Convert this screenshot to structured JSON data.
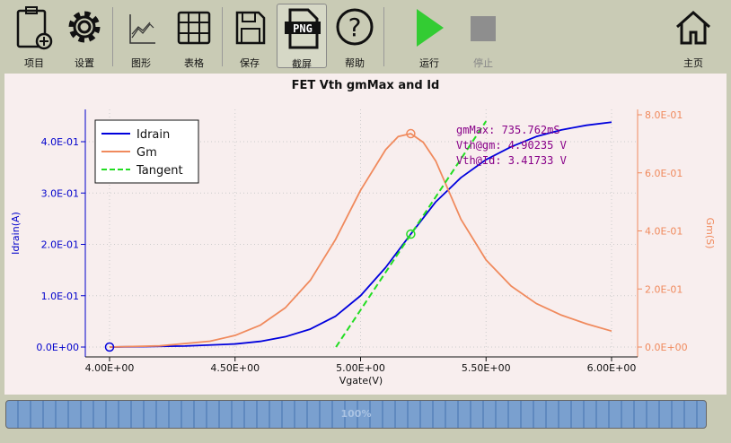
{
  "toolbar": {
    "items": [
      {
        "label": "项目",
        "icon": "clipboard-add-icon"
      },
      {
        "label": "设置",
        "icon": "gear-icon"
      },
      {
        "label": "图形",
        "icon": "line-chart-icon"
      },
      {
        "label": "表格",
        "icon": "table-grid-icon"
      },
      {
        "label": "保存",
        "icon": "floppy-save-icon"
      },
      {
        "label": "截屏",
        "icon": "png-file-icon"
      },
      {
        "label": "帮助",
        "icon": "help-icon"
      },
      {
        "label": "运行",
        "icon": "play-icon"
      },
      {
        "label": "停止",
        "icon": "stop-icon"
      },
      {
        "label": "主页",
        "icon": "home-icon"
      }
    ]
  },
  "chart_data": {
    "type": "line",
    "title": "FET Vth gmMax and Id",
    "xlabel": "Vgate(V)",
    "ylabel": "Idrain(A)",
    "y2label": "Gm(S)",
    "xlim": [
      3.9,
      6.05
    ],
    "ylim": [
      -0.02,
      0.465
    ],
    "y2lim": [
      -0.034,
      0.82
    ],
    "xticks": [
      "4.00E+00",
      "4.50E+00",
      "5.00E+00",
      "5.50E+00",
      "6.00E+00"
    ],
    "xtick_values": [
      4,
      4.5,
      5,
      5.5,
      6
    ],
    "yticks": [
      "0.0E+00",
      "1.0E-01",
      "2.0E-01",
      "3.0E-01",
      "4.0E-01"
    ],
    "ytick_values": [
      0,
      0.1,
      0.2,
      0.3,
      0.4
    ],
    "y2ticks": [
      "0.0E+00",
      "2.0E-01",
      "4.0E-01",
      "6.0E-01",
      "8.0E-01"
    ],
    "y2tick_values": [
      0,
      0.2,
      0.4,
      0.6,
      0.8
    ],
    "legend": {
      "placement": "top-left",
      "entries": [
        "Idrain",
        "Gm",
        "Tangent"
      ]
    },
    "colors": {
      "idrain": "#0000dd",
      "gm": "#f08a5d",
      "tangent": "#22dd22",
      "annot": "#880088",
      "right_axis": "#f08a5d",
      "left_axis": "#0000cc"
    },
    "series": [
      {
        "name": "Idrain",
        "axis": "left",
        "x": [
          4.0,
          4.3,
          4.5,
          4.6,
          4.7,
          4.8,
          4.9,
          5.0,
          5.1,
          5.2,
          5.3,
          5.4,
          5.5,
          5.6,
          5.7,
          5.8,
          5.9,
          6.0
        ],
        "y": [
          0,
          0.002,
          0.006,
          0.011,
          0.02,
          0.035,
          0.06,
          0.1,
          0.155,
          0.22,
          0.283,
          0.33,
          0.365,
          0.39,
          0.41,
          0.423,
          0.432,
          0.438
        ]
      },
      {
        "name": "Gm",
        "axis": "right",
        "x": [
          4.0,
          4.2,
          4.4,
          4.5,
          4.6,
          4.7,
          4.8,
          4.9,
          5.0,
          5.1,
          5.15,
          5.2,
          5.25,
          5.3,
          5.4,
          5.5,
          5.6,
          5.7,
          5.8,
          5.9,
          6.0
        ],
        "y": [
          0,
          0.004,
          0.02,
          0.04,
          0.075,
          0.135,
          0.23,
          0.37,
          0.54,
          0.68,
          0.725,
          0.735,
          0.705,
          0.64,
          0.44,
          0.3,
          0.21,
          0.15,
          0.11,
          0.08,
          0.055
        ]
      },
      {
        "name": "Tangent",
        "axis": "left",
        "dashed": true,
        "x": [
          4.902,
          5.5
        ],
        "y": [
          0,
          0.44
        ]
      }
    ],
    "markers": [
      {
        "series": "Idrain",
        "x": 4.0,
        "y": 0
      },
      {
        "series": "Idrain",
        "x": 5.2,
        "y": 0.22
      },
      {
        "series": "Gm",
        "x": 5.2,
        "y": 0.735
      }
    ],
    "annotations": [
      "gmMax:  735.762mS",
      "Vth@gm: 4.90235 V",
      "Vth@Id: 3.41733 V"
    ]
  },
  "progress": {
    "label": "100%",
    "value": 1.0
  }
}
